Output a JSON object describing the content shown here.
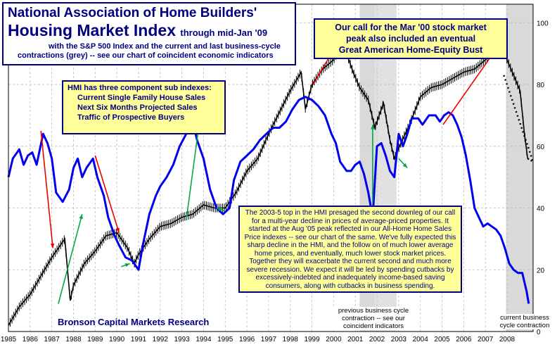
{
  "title": {
    "line1": "National Association of Home Builders'",
    "line2": "Housing Market Index",
    "line2_suffix": "through mid-Jan '09",
    "line3a": "with the S&P 500 Index and the current and last business-cycle",
    "line3b": "contractions (grey) -- see our chart of coincident economic indicators"
  },
  "call_box": {
    "line1": "Our call for the Mar '00 stock market",
    "line2": "peak also included an eventual",
    "line3": "Great American Home-Equity Bust"
  },
  "hmi_box": {
    "heading": "HMI has three component sub indexes:",
    "items": [
      "Current Single Family House Sales",
      "Next Six Months Projected Sales",
      "Traffic of Prospective Buyers"
    ]
  },
  "note_box": {
    "text": "The 2003-5 top in the HMI presaged the second downleg of our call for a multi-year decline in prices of average-priced properties. It started at the Aug '05 peak reflected in our All-Home Home Sales Price indexes -- see our chart of the same. We've fully expected this sharp decline in the HMI, and the follow on of much lower average home prices, and eventually, much lower stock market prices. Together they will exacerbate the current second and much more severe recession. We expect it will be led by spending cutbacks by excessively-indebted and inadequately income-based saving consumers, along with cutbacks in business spending."
  },
  "credit": "Bronson Capital Markets Research",
  "annotations": {
    "prev_cycle": "previous business cycle contraction -- see our coincident indicators",
    "current_cycle": "current business cycle contraction"
  },
  "colors": {
    "hmi_line": "#0000ee",
    "sp500_bars": "#000000",
    "recession_shade": "#d9d9d9",
    "red_arrow": "#ee0000",
    "green_arrow": "#00aa44",
    "box_border": "#000080",
    "box_fill": "#ffff99",
    "text": "#000080"
  },
  "chart_data": {
    "type": "line",
    "x_ticks": [
      "1985",
      "1986",
      "1987",
      "1988",
      "1989",
      "1990",
      "1991",
      "1992",
      "1993",
      "1994",
      "1995",
      "1996",
      "1997",
      "1998",
      "1999",
      "2000",
      "2001",
      "2002",
      "2003",
      "2004",
      "2005",
      "2006",
      "2007",
      "2008"
    ],
    "y_ticks": [
      0,
      20,
      40,
      60,
      80,
      100
    ],
    "xlim": [
      1985,
      2009.2
    ],
    "ylim": [
      0,
      106
    ],
    "y_axis_side": "right",
    "grid": true,
    "recessions": [
      [
        2001.2,
        2001.9
      ],
      [
        2001.9,
        2002.9
      ],
      [
        2007.95,
        2009.2
      ]
    ],
    "series": [
      {
        "role": "hmi",
        "x": [
          1985.0,
          1985.2,
          1985.5,
          1985.7,
          1985.9,
          1986.1,
          1986.3,
          1986.6,
          1986.8,
          1987.0,
          1987.2,
          1987.5,
          1987.8,
          1988.0,
          1988.2,
          1988.4,
          1988.6,
          1988.9,
          1989.1,
          1989.4,
          1989.6,
          1989.9,
          1990.1,
          1990.4,
          1990.7,
          1991.0,
          1991.2,
          1991.5,
          1991.8,
          1992.0,
          1992.3,
          1992.6,
          1992.9,
          1993.2,
          1993.5,
          1993.7,
          1994.0,
          1994.3,
          1994.6,
          1994.9,
          1995.2,
          1995.4,
          1995.7,
          1996.0,
          1996.3,
          1996.6,
          1996.9,
          1997.2,
          1997.5,
          1997.8,
          1998.1,
          1998.4,
          1998.7,
          1999.0,
          1999.3,
          1999.6,
          1999.9,
          2000.1,
          2000.3,
          2000.6,
          2000.8,
          2001.0,
          2001.2,
          2001.4,
          2001.6,
          2001.8,
          2002.0,
          2002.2,
          2002.4,
          2002.6,
          2002.8,
          2003.0,
          2003.2,
          2003.4,
          2003.6,
          2003.9,
          2004.1,
          2004.4,
          2004.7,
          2004.9,
          2005.1,
          2005.3,
          2005.5,
          2005.7,
          2005.9,
          2006.1,
          2006.3,
          2006.5,
          2006.7,
          2006.9,
          2007.1,
          2007.3,
          2007.5,
          2007.7,
          2007.9,
          2008.1,
          2008.3,
          2008.5,
          2008.7,
          2008.9,
          2009.0
        ],
        "values": [
          50,
          56,
          59,
          54,
          57,
          58,
          54,
          64,
          61,
          56,
          45,
          42,
          46,
          53,
          56,
          50,
          53,
          56,
          50,
          44,
          37,
          31,
          28,
          24,
          23,
          20,
          28,
          38,
          44,
          47,
          50,
          54,
          60,
          64,
          68,
          62,
          56,
          46,
          40,
          38,
          40,
          49,
          55,
          57,
          59,
          62,
          64,
          66,
          66,
          68,
          72,
          75,
          76,
          75,
          73,
          70,
          64,
          61,
          55,
          52,
          52,
          54,
          55,
          51,
          45,
          37,
          60,
          61,
          57,
          52,
          50,
          64,
          60,
          64,
          69,
          69,
          67,
          70,
          70,
          68,
          70,
          71,
          70,
          67,
          63,
          57,
          49,
          40,
          37,
          34,
          35,
          34,
          33,
          31,
          27,
          22,
          20,
          19,
          19,
          13,
          9
        ]
      },
      {
        "role": "sp500",
        "x": [
          1985.0,
          1985.5,
          1986.0,
          1986.5,
          1987.0,
          1987.3,
          1987.6,
          1987.85,
          1988.0,
          1988.5,
          1989.0,
          1989.5,
          1990.0,
          1990.5,
          1990.8,
          1991.0,
          1991.5,
          1992.0,
          1992.5,
          1993.0,
          1993.5,
          1994.0,
          1994.5,
          1995.0,
          1995.5,
          1996.0,
          1996.5,
          1997.0,
          1997.5,
          1998.0,
          1998.5,
          1998.7,
          1999.0,
          1999.5,
          2000.0,
          2000.3,
          2000.6,
          2000.9,
          2001.2,
          2001.6,
          2001.9,
          2002.3,
          2002.6,
          2002.8,
          2003.1,
          2003.5,
          2004.0,
          2004.5,
          2005.0,
          2005.5,
          2006.0,
          2006.5,
          2007.0,
          2007.4,
          2007.8,
          2008.0,
          2008.3,
          2008.6,
          2008.8,
          2008.95
        ],
        "values": [
          2,
          8,
          12,
          18,
          24,
          27,
          30,
          10,
          15,
          22,
          26,
          31,
          32,
          27,
          22,
          25,
          30,
          34,
          35,
          37,
          38,
          41,
          40,
          40,
          45,
          52,
          56,
          64,
          71,
          78,
          84,
          72,
          80,
          85,
          88,
          92,
          90,
          84,
          79,
          75,
          66,
          74,
          62,
          56,
          61,
          67,
          76,
          79,
          80,
          82,
          84,
          85,
          88,
          92,
          93,
          88,
          83,
          78,
          64,
          56
        ]
      }
    ],
    "projection": {
      "x": [
        2008.95,
        2009.2
      ],
      "values": [
        56,
        55
      ]
    },
    "red_arrows": [
      {
        "from": [
          1986.5,
          65
        ],
        "to": [
          1987.05,
          27
        ]
      },
      {
        "from": [
          1989.0,
          57
        ],
        "to": [
          1990.1,
          32
        ]
      },
      {
        "from": [
          1999.05,
          80
        ],
        "to": [
          2000.15,
          93
        ]
      },
      {
        "from": [
          2005.05,
          67
        ],
        "to": [
          2007.55,
          92
        ]
      }
    ],
    "green_arrows": [
      {
        "from": [
          1987.3,
          9
        ],
        "to": [
          1988.4,
          38
        ]
      },
      {
        "from": [
          1990.2,
          21
        ],
        "to": [
          1990.6,
          22
        ]
      },
      {
        "from": [
          1993.2,
          36
        ],
        "to": [
          1993.85,
          70
        ]
      },
      {
        "from": [
          1995.0,
          39
        ],
        "to": [
          1994.6,
          40
        ]
      },
      {
        "from": [
          2001.8,
          42
        ],
        "to": [
          2001.8,
          67
        ]
      },
      {
        "from": [
          2003.0,
          56
        ],
        "to": [
          2003.4,
          53
        ]
      }
    ]
  }
}
